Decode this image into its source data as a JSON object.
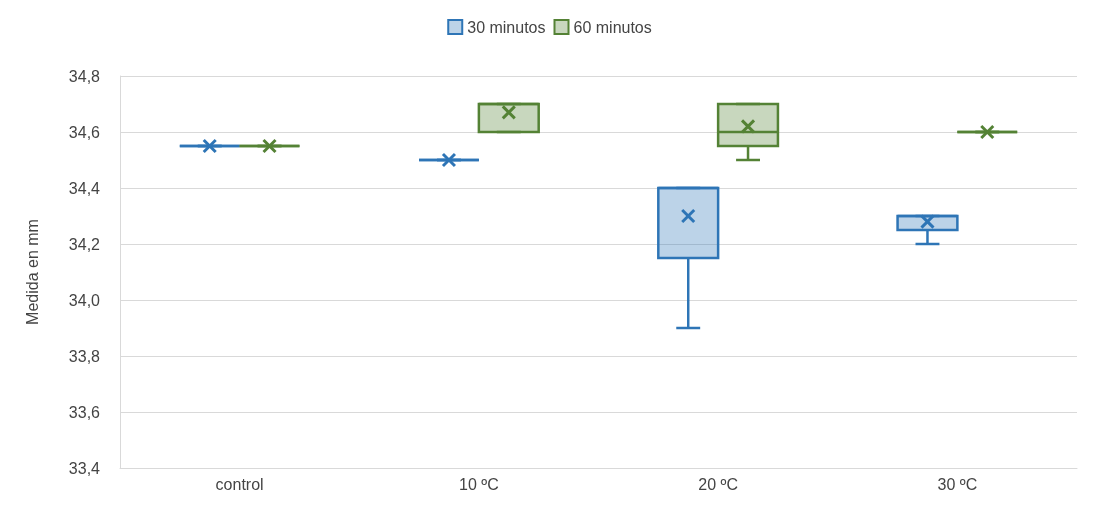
{
  "chart_data": {
    "type": "box",
    "ylabel": "Medida en mm",
    "categories": [
      "control",
      "10 ºC",
      "20 ºC",
      "30 ºC"
    ],
    "series": [
      {
        "name": "30 minutos",
        "color": "#2e75b6",
        "boxes": [
          {
            "low": 34.55,
            "q1": 34.55,
            "median": 34.55,
            "q3": 34.55,
            "high": 34.55,
            "mean": 34.55
          },
          {
            "low": 34.5,
            "q1": 34.5,
            "median": 34.5,
            "q3": 34.5,
            "high": 34.5,
            "mean": 34.5
          },
          {
            "low": 33.9,
            "q1": 34.15,
            "median": 34.4,
            "q3": 34.4,
            "high": 34.4,
            "mean": 34.3
          },
          {
            "low": 34.2,
            "q1": 34.25,
            "median": 34.3,
            "q3": 34.3,
            "high": 34.3,
            "mean": 34.28
          }
        ]
      },
      {
        "name": "60 minutos",
        "color": "#548235",
        "boxes": [
          {
            "low": 34.55,
            "q1": 34.55,
            "median": 34.55,
            "q3": 34.55,
            "high": 34.55,
            "mean": 34.55
          },
          {
            "low": 34.6,
            "q1": 34.6,
            "median": 34.7,
            "q3": 34.7,
            "high": 34.7,
            "mean": 34.67
          },
          {
            "low": 34.5,
            "q1": 34.55,
            "median": 34.6,
            "q3": 34.7,
            "high": 34.7,
            "mean": 34.62
          },
          {
            "low": 34.6,
            "q1": 34.6,
            "median": 34.6,
            "q3": 34.6,
            "high": 34.6,
            "mean": 34.6
          }
        ]
      }
    ],
    "ylim": [
      33.4,
      34.8
    ],
    "yticks": [
      {
        "value": 33.4,
        "label": "33,4"
      },
      {
        "value": 33.6,
        "label": "33,6"
      },
      {
        "value": 33.8,
        "label": "33,8"
      },
      {
        "value": 34.0,
        "label": "34,0"
      },
      {
        "value": 34.2,
        "label": "34,2"
      },
      {
        "value": 34.4,
        "label": "34,4"
      },
      {
        "value": 34.6,
        "label": "34,6"
      },
      {
        "value": 34.8,
        "label": "34,8"
      }
    ],
    "grid": "y",
    "legend": "top",
    "marker": "cross"
  }
}
